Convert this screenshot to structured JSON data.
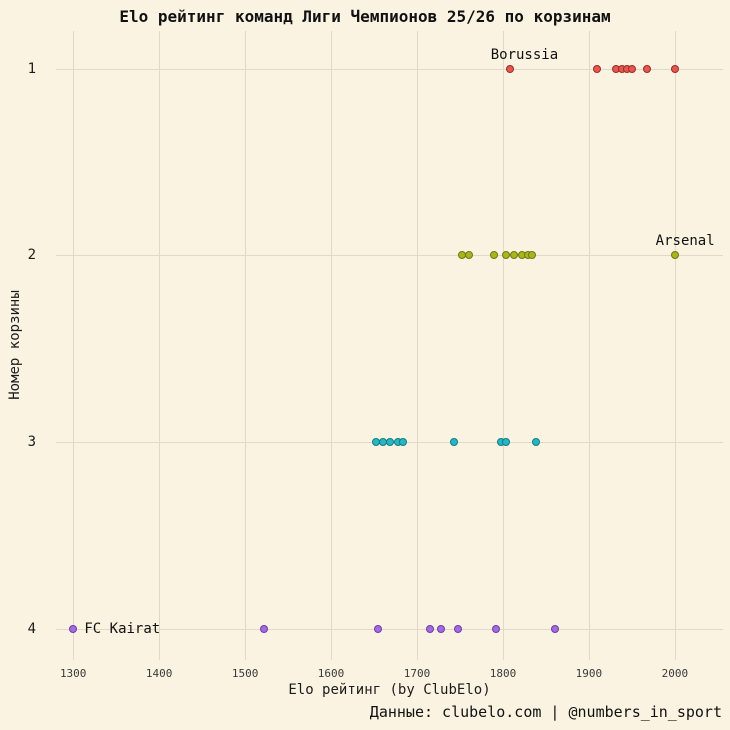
{
  "chart": {
    "title": "Elo рейтинг команд Лиги Чемпионов 25/26 по корзинам",
    "xlabel": "Elo рейтинг (by ClubElo)",
    "ylabel": "Номер корзины",
    "caption": "Данные: clubelo.com | @numbers_in_sport"
  },
  "chart_data": {
    "type": "scatter",
    "subtype": "horizontal-strip-by-category",
    "title": "Elo рейтинг команд Лиги Чемпионов 25/26 по корзинам",
    "xlabel": "Elo рейтинг (by ClubElo)",
    "ylabel": "Номер корзины",
    "caption": "Данные: clubelo.com | @numbers_in_sport",
    "grid": true,
    "background_color": "#faf3e2",
    "grid_color": "#e0d9c6",
    "xlim": [
      1280,
      2056
    ],
    "x_ticks": [
      1300,
      1400,
      1500,
      1600,
      1700,
      1800,
      1900,
      2000
    ],
    "y_categories": [
      "1",
      "2",
      "3",
      "4"
    ],
    "series": [
      {
        "name": "1",
        "pot": 1,
        "color": "#e4564f",
        "edge": "#9c2b26",
        "values": [
          1808,
          1909,
          1932,
          1938,
          1944,
          1950,
          1967,
          2000
        ]
      },
      {
        "name": "2",
        "pot": 2,
        "color": "#a9b41e",
        "edge": "#6f7a0e",
        "values": [
          1752,
          1761,
          1790,
          1803,
          1813,
          1822,
          1829,
          1834,
          2000
        ]
      },
      {
        "name": "3",
        "pot": 3,
        "color": "#27b6c2",
        "edge": "#127a84",
        "values": [
          1652,
          1661,
          1669,
          1678,
          1684,
          1743,
          1798,
          1803,
          1839
        ]
      },
      {
        "name": "4",
        "pot": 4,
        "color": "#a46be0",
        "edge": "#6b3da6",
        "values": [
          1300,
          1522,
          1655,
          1715,
          1728,
          1748,
          1792,
          1860
        ]
      }
    ],
    "annotations": [
      {
        "text": "Borussia",
        "x": 1825,
        "pot": 1,
        "dy": -14,
        "anchor": "middle"
      },
      {
        "text": "Arsenal",
        "x": 2012,
        "pot": 2,
        "dy": -14,
        "anchor": "middle"
      },
      {
        "text": "FC Kairat",
        "x": 1313,
        "pot": 4,
        "dy": 0,
        "anchor": "start"
      }
    ]
  }
}
